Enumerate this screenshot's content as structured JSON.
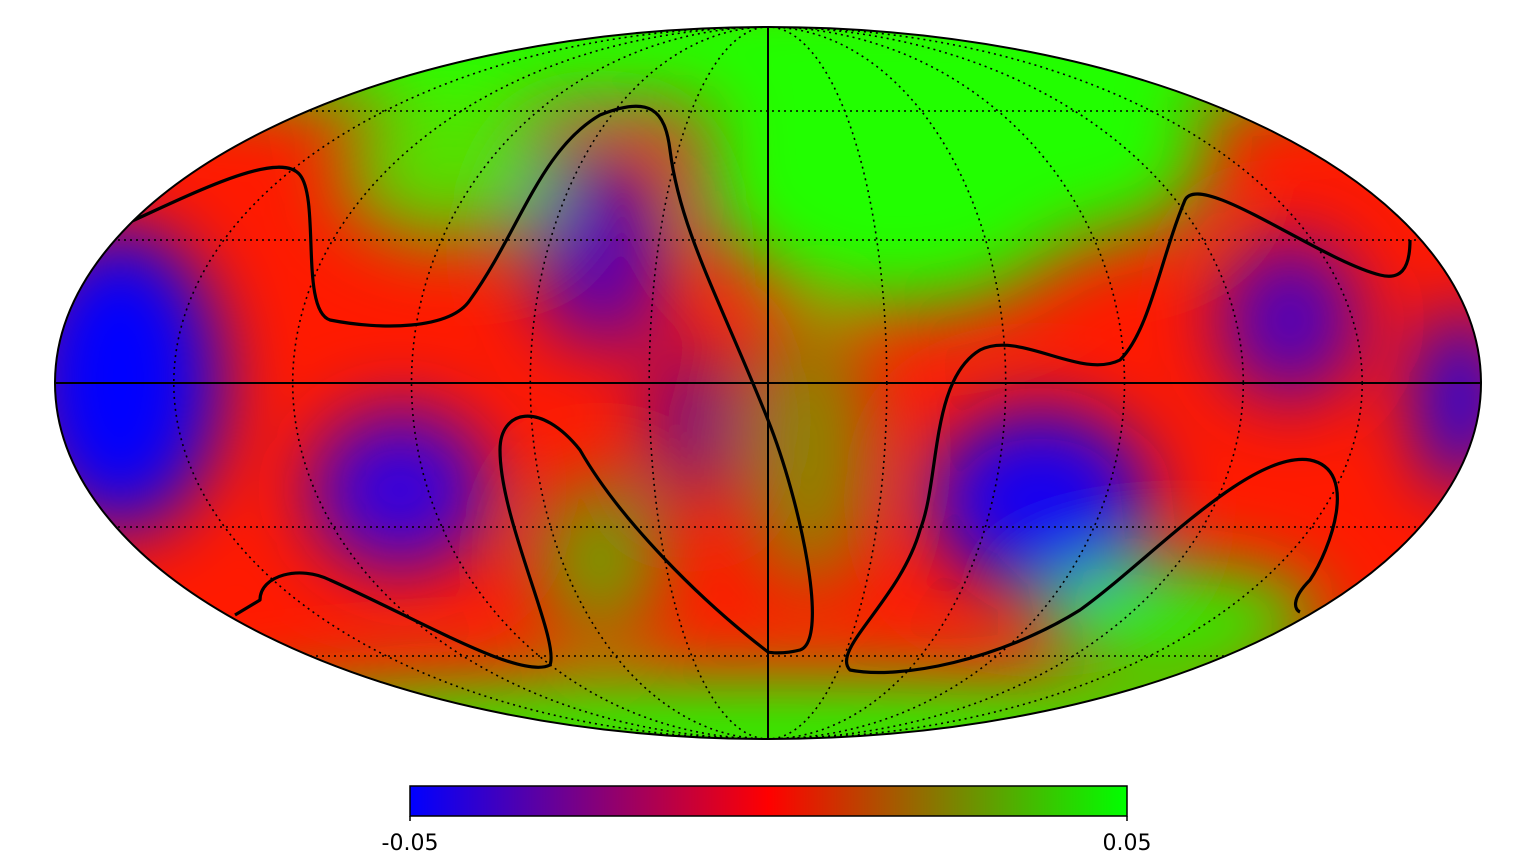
{
  "map": {
    "projection": "mollweide",
    "colorbar": {
      "lim": [
        -0.05,
        0.05
      ],
      "ticks": [
        -0.05,
        0.05
      ],
      "colors": [
        "#0000ff",
        "#ff0000",
        "#00ff00"
      ]
    }
  }
}
